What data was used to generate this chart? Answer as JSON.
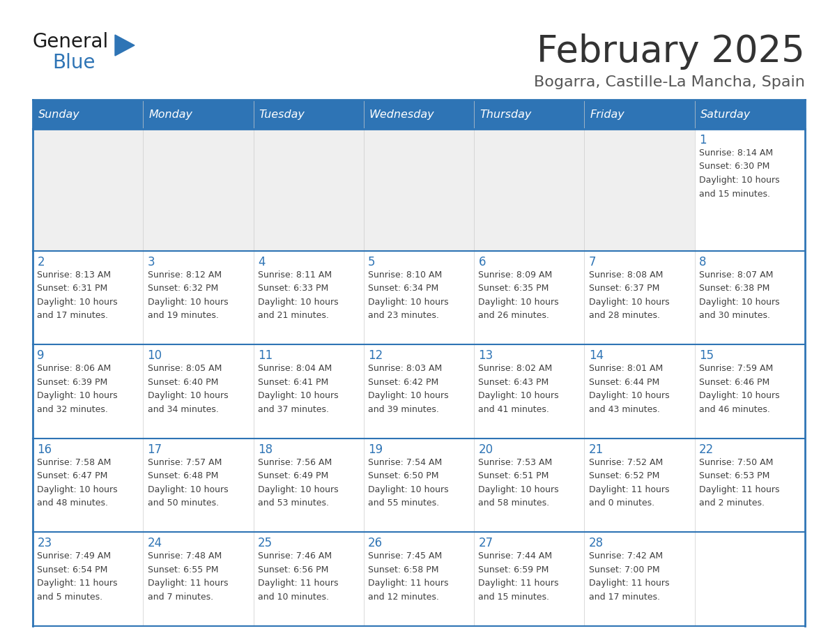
{
  "title": "February 2025",
  "subtitle": "Bogarra, Castille-La Mancha, Spain",
  "days_of_week": [
    "Sunday",
    "Monday",
    "Tuesday",
    "Wednesday",
    "Thursday",
    "Friday",
    "Saturday"
  ],
  "header_bg": "#2E74B5",
  "header_text": "#FFFFFF",
  "cell_border": "#2E74B5",
  "day_number_color": "#2E74B5",
  "info_text_color": "#404040",
  "title_color": "#333333",
  "subtitle_color": "#555555",
  "empty_cell_bg": "#EFEFEF",
  "filled_cell_bg": "#FFFFFF",
  "weeks": [
    [
      {
        "day": null,
        "info": null
      },
      {
        "day": null,
        "info": null
      },
      {
        "day": null,
        "info": null
      },
      {
        "day": null,
        "info": null
      },
      {
        "day": null,
        "info": null
      },
      {
        "day": null,
        "info": null
      },
      {
        "day": 1,
        "info": "Sunrise: 8:14 AM\nSunset: 6:30 PM\nDaylight: 10 hours\nand 15 minutes."
      }
    ],
    [
      {
        "day": 2,
        "info": "Sunrise: 8:13 AM\nSunset: 6:31 PM\nDaylight: 10 hours\nand 17 minutes."
      },
      {
        "day": 3,
        "info": "Sunrise: 8:12 AM\nSunset: 6:32 PM\nDaylight: 10 hours\nand 19 minutes."
      },
      {
        "day": 4,
        "info": "Sunrise: 8:11 AM\nSunset: 6:33 PM\nDaylight: 10 hours\nand 21 minutes."
      },
      {
        "day": 5,
        "info": "Sunrise: 8:10 AM\nSunset: 6:34 PM\nDaylight: 10 hours\nand 23 minutes."
      },
      {
        "day": 6,
        "info": "Sunrise: 8:09 AM\nSunset: 6:35 PM\nDaylight: 10 hours\nand 26 minutes."
      },
      {
        "day": 7,
        "info": "Sunrise: 8:08 AM\nSunset: 6:37 PM\nDaylight: 10 hours\nand 28 minutes."
      },
      {
        "day": 8,
        "info": "Sunrise: 8:07 AM\nSunset: 6:38 PM\nDaylight: 10 hours\nand 30 minutes."
      }
    ],
    [
      {
        "day": 9,
        "info": "Sunrise: 8:06 AM\nSunset: 6:39 PM\nDaylight: 10 hours\nand 32 minutes."
      },
      {
        "day": 10,
        "info": "Sunrise: 8:05 AM\nSunset: 6:40 PM\nDaylight: 10 hours\nand 34 minutes."
      },
      {
        "day": 11,
        "info": "Sunrise: 8:04 AM\nSunset: 6:41 PM\nDaylight: 10 hours\nand 37 minutes."
      },
      {
        "day": 12,
        "info": "Sunrise: 8:03 AM\nSunset: 6:42 PM\nDaylight: 10 hours\nand 39 minutes."
      },
      {
        "day": 13,
        "info": "Sunrise: 8:02 AM\nSunset: 6:43 PM\nDaylight: 10 hours\nand 41 minutes."
      },
      {
        "day": 14,
        "info": "Sunrise: 8:01 AM\nSunset: 6:44 PM\nDaylight: 10 hours\nand 43 minutes."
      },
      {
        "day": 15,
        "info": "Sunrise: 7:59 AM\nSunset: 6:46 PM\nDaylight: 10 hours\nand 46 minutes."
      }
    ],
    [
      {
        "day": 16,
        "info": "Sunrise: 7:58 AM\nSunset: 6:47 PM\nDaylight: 10 hours\nand 48 minutes."
      },
      {
        "day": 17,
        "info": "Sunrise: 7:57 AM\nSunset: 6:48 PM\nDaylight: 10 hours\nand 50 minutes."
      },
      {
        "day": 18,
        "info": "Sunrise: 7:56 AM\nSunset: 6:49 PM\nDaylight: 10 hours\nand 53 minutes."
      },
      {
        "day": 19,
        "info": "Sunrise: 7:54 AM\nSunset: 6:50 PM\nDaylight: 10 hours\nand 55 minutes."
      },
      {
        "day": 20,
        "info": "Sunrise: 7:53 AM\nSunset: 6:51 PM\nDaylight: 10 hours\nand 58 minutes."
      },
      {
        "day": 21,
        "info": "Sunrise: 7:52 AM\nSunset: 6:52 PM\nDaylight: 11 hours\nand 0 minutes."
      },
      {
        "day": 22,
        "info": "Sunrise: 7:50 AM\nSunset: 6:53 PM\nDaylight: 11 hours\nand 2 minutes."
      }
    ],
    [
      {
        "day": 23,
        "info": "Sunrise: 7:49 AM\nSunset: 6:54 PM\nDaylight: 11 hours\nand 5 minutes."
      },
      {
        "day": 24,
        "info": "Sunrise: 7:48 AM\nSunset: 6:55 PM\nDaylight: 11 hours\nand 7 minutes."
      },
      {
        "day": 25,
        "info": "Sunrise: 7:46 AM\nSunset: 6:56 PM\nDaylight: 11 hours\nand 10 minutes."
      },
      {
        "day": 26,
        "info": "Sunrise: 7:45 AM\nSunset: 6:58 PM\nDaylight: 11 hours\nand 12 minutes."
      },
      {
        "day": 27,
        "info": "Sunrise: 7:44 AM\nSunset: 6:59 PM\nDaylight: 11 hours\nand 15 minutes."
      },
      {
        "day": 28,
        "info": "Sunrise: 7:42 AM\nSunset: 7:00 PM\nDaylight: 11 hours\nand 17 minutes."
      },
      {
        "day": null,
        "info": null
      }
    ]
  ]
}
